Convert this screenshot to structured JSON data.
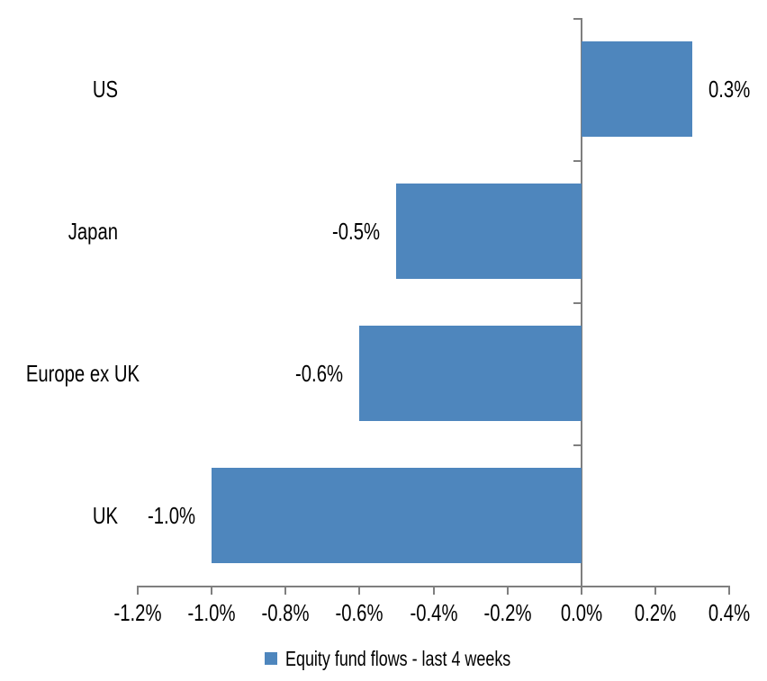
{
  "chart_data": {
    "type": "bar",
    "orientation": "horizontal",
    "title": "",
    "categories": [
      "US",
      "Japan",
      "Europe ex UK",
      "UK"
    ],
    "values": [
      0.3,
      -0.5,
      -0.6,
      -1.0
    ],
    "data_labels": [
      "0.3%",
      "-0.5%",
      "-0.6%",
      "-1.0%"
    ],
    "unit": "%",
    "xlim": [
      -1.2,
      0.4
    ],
    "x_ticks": [
      -1.2,
      -1.0,
      -0.8,
      -0.6,
      -0.4,
      -0.2,
      0.0,
      0.2,
      0.4
    ],
    "x_tick_labels": [
      "-1.2%",
      "-1.0%",
      "-0.8%",
      "-0.6%",
      "-0.4%",
      "-0.2%",
      "0.0%",
      "0.2%",
      "0.4%"
    ],
    "grid": false,
    "legend_position": "bottom-center",
    "legend": [
      {
        "label": "Equity fund flows - last 4 weeks",
        "color": "#4E86BD"
      }
    ],
    "colors": {
      "bar": "#4E86BD",
      "axis": "#7F7F7F",
      "text": "#000000",
      "background": "#FFFFFF"
    }
  }
}
